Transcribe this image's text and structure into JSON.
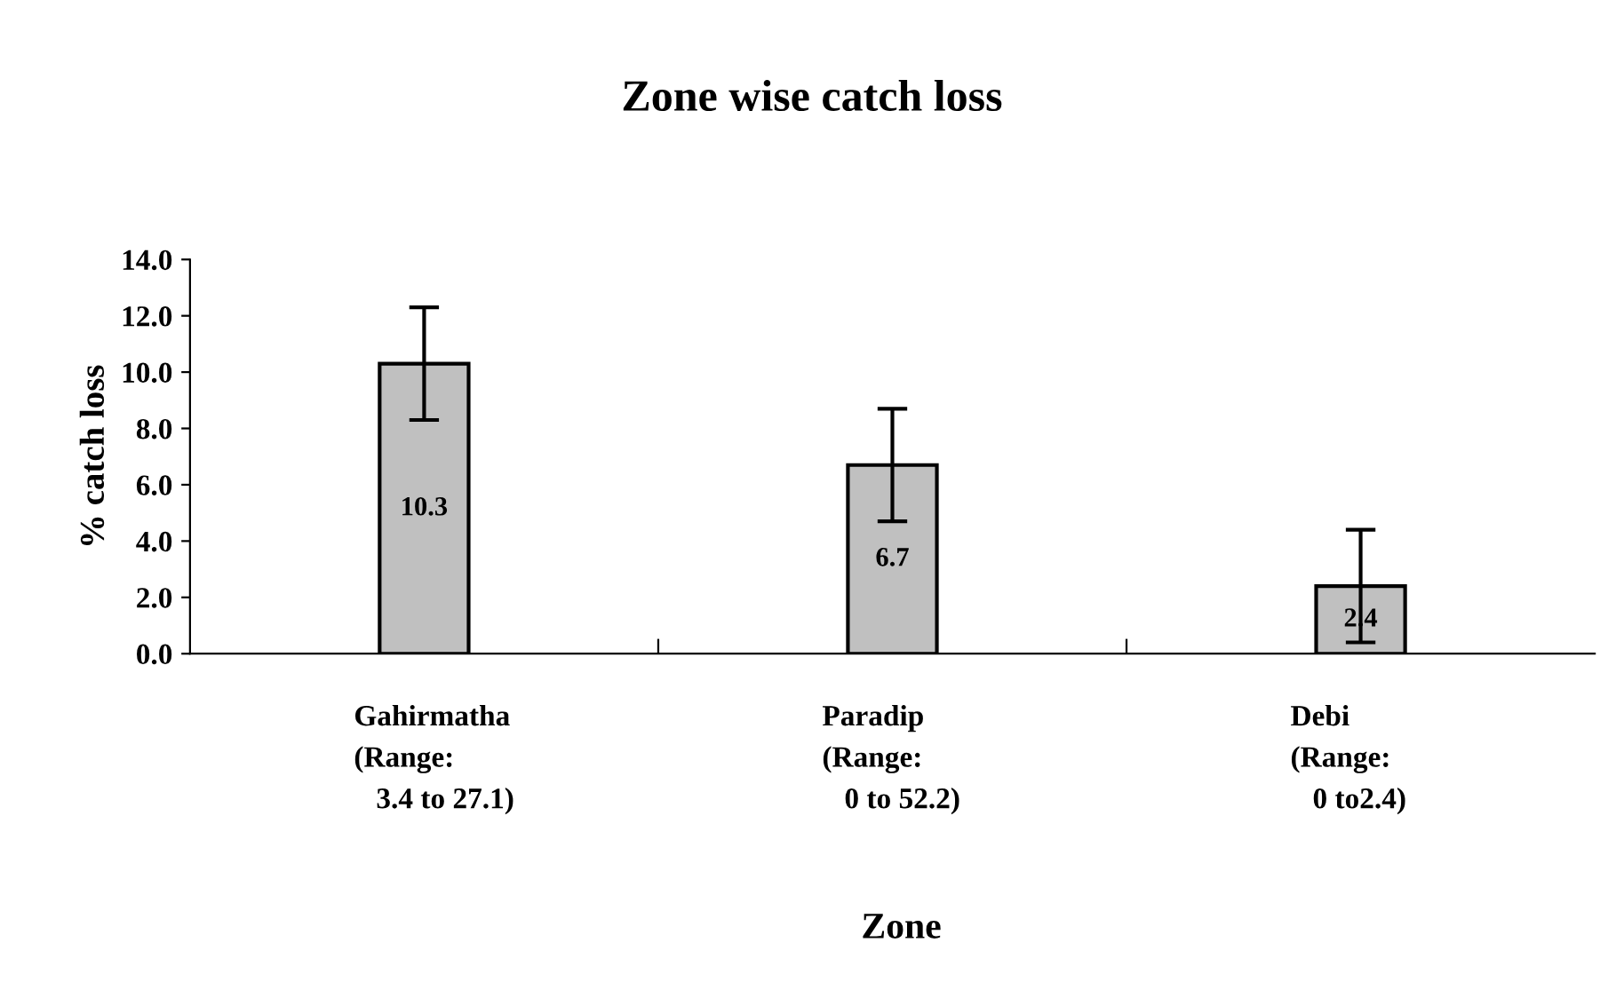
{
  "chart_data": {
    "type": "bar",
    "title": "Zone wise catch loss",
    "xlabel": "Zone",
    "ylabel": "% catch loss",
    "categories": [
      "Gahirmatha\n(Range:\n   3.4 to 27.1)",
      "Paradip\n(Range:\n   0 to 52.2)",
      "Debi\n(Range:\n   0 to2.4)"
    ],
    "values": [
      10.3,
      6.7,
      2.4
    ],
    "color": "#c0c0c0",
    "errors": [
      2.0,
      2.0,
      2.0
    ],
    "data_labels": true,
    "ylim": [
      0,
      14
    ],
    "yticks": [
      {
        "value": 0,
        "label": "0.0"
      },
      {
        "value": 2,
        "label": "2.0"
      },
      {
        "value": 4,
        "label": "4.0"
      },
      {
        "value": 6,
        "label": "6.0"
      },
      {
        "value": 8,
        "label": "8.0"
      },
      {
        "value": 10,
        "label": "10.0"
      },
      {
        "value": 12,
        "label": "12.0"
      },
      {
        "value": 14,
        "label": "14.0"
      }
    ],
    "grid": false,
    "legend": false
  }
}
